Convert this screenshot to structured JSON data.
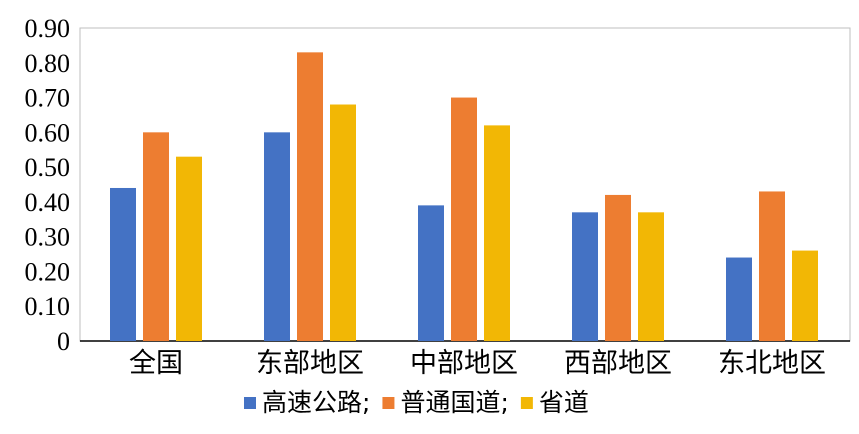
{
  "chart_data": {
    "type": "bar",
    "categories": [
      "全国",
      "东部地区",
      "中部地区",
      "西部地区",
      "东北地区"
    ],
    "series": [
      {
        "name": "高速公路;",
        "color": "#4472C4",
        "values": [
          0.44,
          0.6,
          0.39,
          0.37,
          0.24
        ]
      },
      {
        "name": "普通国道;",
        "color": "#ED7D31",
        "values": [
          0.6,
          0.83,
          0.7,
          0.42,
          0.43
        ]
      },
      {
        "name": "省道",
        "color": "#F2B705",
        "values": [
          0.53,
          0.68,
          0.62,
          0.37,
          0.26
        ]
      }
    ],
    "ylim": [
      0,
      0.9
    ],
    "yticks": [
      "0",
      "0.10",
      "0.20",
      "0.30",
      "0.40",
      "0.50",
      "0.60",
      "0.70",
      "0.80",
      "0.90"
    ],
    "title": "",
    "xlabel": "",
    "ylabel": "",
    "legend_position": "bottom",
    "grid": false
  }
}
